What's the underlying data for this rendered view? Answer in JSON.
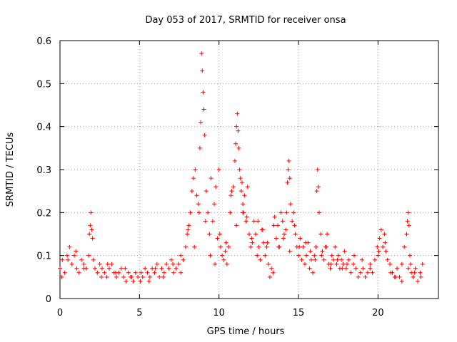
{
  "chart_data": {
    "type": "scatter",
    "title": "Day 053 of 2017, SRMTID for receiver onsa",
    "xlabel": "GPS time / hours",
    "ylabel": "SRMTID / TECUs",
    "xlim": [
      0,
      23.8
    ],
    "ylim": [
      0,
      0.6
    ],
    "xticks": [
      0,
      5,
      10,
      15,
      20
    ],
    "yticks": [
      0,
      0.1,
      0.2,
      0.3,
      0.4,
      0.5,
      0.6
    ],
    "xtick_labels": [
      "0",
      "5",
      "10",
      "15",
      "20"
    ],
    "ytick_labels": [
      "0",
      "0.1",
      "0.2",
      "0.3",
      "0.4",
      "0.5",
      "0.6"
    ],
    "grid": true,
    "marker": "+",
    "color": "#ff0000",
    "series": [
      {
        "name": "SRMTID",
        "x": [
          0.0,
          0.15,
          0.3,
          0.45,
          0.6,
          0.75,
          0.9,
          1.05,
          1.2,
          1.35,
          1.5,
          1.65,
          1.8,
          1.85,
          1.9,
          1.95,
          2.0,
          2.05,
          2.2,
          2.35,
          2.5,
          2.65,
          2.8,
          2.95,
          3.1,
          3.25,
          3.4,
          3.55,
          3.7,
          3.85,
          4.0,
          4.15,
          4.3,
          4.45,
          4.6,
          4.75,
          4.9,
          5.05,
          5.2,
          5.35,
          5.5,
          5.65,
          5.8,
          5.95,
          6.1,
          6.25,
          6.4,
          6.55,
          6.7,
          6.85,
          7.0,
          7.15,
          7.3,
          7.45,
          7.6,
          7.75,
          7.9,
          8.0,
          8.1,
          8.2,
          8.3,
          8.4,
          8.5,
          8.6,
          8.7,
          8.8,
          8.85,
          8.9,
          8.95,
          9.0,
          9.05,
          9.1,
          9.2,
          9.3,
          9.4,
          9.5,
          9.6,
          9.7,
          9.8,
          9.9,
          10.0,
          10.1,
          10.2,
          10.3,
          10.4,
          10.5,
          10.6,
          10.7,
          10.8,
          10.9,
          11.0,
          11.05,
          11.1,
          11.15,
          11.2,
          11.25,
          11.3,
          11.35,
          11.4,
          11.45,
          11.5,
          11.55,
          11.6,
          11.7,
          11.8,
          11.9,
          12.0,
          12.1,
          12.2,
          12.3,
          12.4,
          12.5,
          12.6,
          12.7,
          12.8,
          12.9,
          13.0,
          13.1,
          13.2,
          13.3,
          13.4,
          13.5,
          13.6,
          13.7,
          13.8,
          13.9,
          14.0,
          14.1,
          14.2,
          14.25,
          14.3,
          14.35,
          14.4,
          14.45,
          14.5,
          14.6,
          14.7,
          14.8,
          14.9,
          15.0,
          15.1,
          15.2,
          15.3,
          15.4,
          15.5,
          15.6,
          15.7,
          15.8,
          15.9,
          16.0,
          16.1,
          16.15,
          16.2,
          16.25,
          16.3,
          16.4,
          16.5,
          16.6,
          16.7,
          16.8,
          16.9,
          17.0,
          17.1,
          17.2,
          17.3,
          17.4,
          17.5,
          17.6,
          17.7,
          17.8,
          17.9,
          18.0,
          18.15,
          18.3,
          18.45,
          18.6,
          18.75,
          18.9,
          19.05,
          19.2,
          19.35,
          19.5,
          19.65,
          19.8,
          19.95,
          20.0,
          20.1,
          20.2,
          20.3,
          20.4,
          20.5,
          20.6,
          20.75,
          20.9,
          21.05,
          21.2,
          21.35,
          21.5,
          21.65,
          21.8,
          21.85,
          21.9,
          21.95,
          22.0,
          22.05,
          22.1,
          22.2,
          22.35,
          22.5,
          22.65,
          22.8,
          0.1,
          0.5,
          1.0,
          1.5,
          2.1,
          2.6,
          3.0,
          3.5,
          4.1,
          4.5,
          5.1,
          5.6,
          6.0,
          6.5,
          7.1,
          7.6,
          8.05,
          8.45,
          8.75,
          9.15,
          9.45,
          9.75,
          10.05,
          10.45,
          10.75,
          11.1,
          11.5,
          11.75,
          12.05,
          12.45,
          12.75,
          13.05,
          13.45,
          13.75,
          14.05,
          14.45,
          14.75,
          15.05,
          15.45,
          15.75,
          16.05,
          16.45,
          16.75,
          17.05,
          17.45,
          17.75,
          18.05,
          18.5,
          19.0,
          19.5,
          20.05,
          20.45,
          20.8,
          21.1,
          21.5,
          21.9,
          22.3,
          22.7
        ],
        "y": [
          0.07,
          0.09,
          0.06,
          0.1,
          0.12,
          0.08,
          0.1,
          0.07,
          0.06,
          0.09,
          0.08,
          0.07,
          0.1,
          0.15,
          0.17,
          0.2,
          0.16,
          0.14,
          0.07,
          0.06,
          0.08,
          0.07,
          0.06,
          0.05,
          0.07,
          0.08,
          0.06,
          0.05,
          0.06,
          0.07,
          0.05,
          0.04,
          0.06,
          0.05,
          0.04,
          0.06,
          0.05,
          0.04,
          0.05,
          0.07,
          0.06,
          0.05,
          0.07,
          0.06,
          0.08,
          0.05,
          0.07,
          0.06,
          0.08,
          0.07,
          0.09,
          0.06,
          0.07,
          0.08,
          0.1,
          0.09,
          0.12,
          0.15,
          0.17,
          0.2,
          0.25,
          0.28,
          0.3,
          0.24,
          0.22,
          0.35,
          0.41,
          0.57,
          0.53,
          0.48,
          0.44,
          0.38,
          0.25,
          0.2,
          0.15,
          0.28,
          0.18,
          0.22,
          0.26,
          0.14,
          0.3,
          0.12,
          0.1,
          0.09,
          0.11,
          0.08,
          0.12,
          0.2,
          0.25,
          0.26,
          0.32,
          0.36,
          0.4,
          0.43,
          0.39,
          0.35,
          0.3,
          0.28,
          0.25,
          0.27,
          0.22,
          0.2,
          0.24,
          0.18,
          0.26,
          0.15,
          0.12,
          0.13,
          0.18,
          0.15,
          0.1,
          0.12,
          0.09,
          0.16,
          0.13,
          0.1,
          0.12,
          0.08,
          0.05,
          0.07,
          0.06,
          0.19,
          0.14,
          0.17,
          0.12,
          0.2,
          0.18,
          0.15,
          0.16,
          0.2,
          0.27,
          0.3,
          0.32,
          0.28,
          0.22,
          0.18,
          0.2,
          0.15,
          0.12,
          0.1,
          0.14,
          0.09,
          0.12,
          0.08,
          0.1,
          0.13,
          0.07,
          0.09,
          0.06,
          0.1,
          0.12,
          0.25,
          0.3,
          0.26,
          0.2,
          0.15,
          0.11,
          0.09,
          0.12,
          0.15,
          0.08,
          0.07,
          0.1,
          0.09,
          0.12,
          0.08,
          0.1,
          0.07,
          0.09,
          0.08,
          0.11,
          0.07,
          0.09,
          0.06,
          0.08,
          0.07,
          0.05,
          0.06,
          0.07,
          0.05,
          0.06,
          0.08,
          0.06,
          0.09,
          0.12,
          0.1,
          0.14,
          0.16,
          0.12,
          0.15,
          0.11,
          0.09,
          0.08,
          0.06,
          0.05,
          0.07,
          0.05,
          0.08,
          0.12,
          0.15,
          0.18,
          0.2,
          0.17,
          0.1,
          0.08,
          0.06,
          0.05,
          0.07,
          0.04,
          0.06,
          0.08,
          0.05,
          0.09,
          0.11,
          0.07,
          0.09,
          0.05,
          0.08,
          0.06,
          0.07,
          0.05,
          0.06,
          0.04,
          0.07,
          0.05,
          0.08,
          0.06,
          0.16,
          0.12,
          0.2,
          0.18,
          0.1,
          0.08,
          0.15,
          0.13,
          0.24,
          0.17,
          0.2,
          0.19,
          0.14,
          0.18,
          0.16,
          0.13,
          0.17,
          0.12,
          0.14,
          0.11,
          0.17,
          0.12,
          0.13,
          0.11,
          0.09,
          0.1,
          0.12,
          0.08,
          0.09,
          0.07,
          0.08,
          0.1,
          0.09,
          0.07,
          0.11,
          0.13,
          0.06,
          0.05,
          0.04,
          0.07,
          0.06,
          0.05
        ]
      }
    ]
  }
}
